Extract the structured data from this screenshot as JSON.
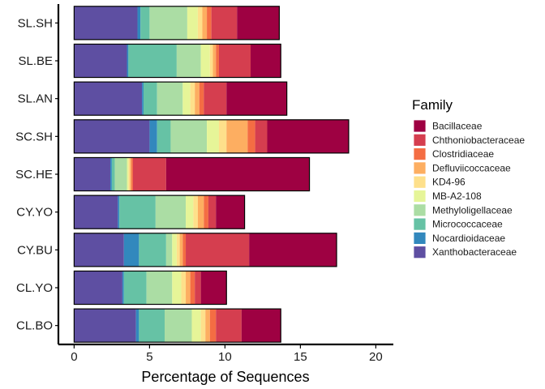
{
  "chart_data": {
    "type": "bar",
    "orientation": "horizontal",
    "stacked": true,
    "title": "",
    "xlabel": "Percentage of Sequences",
    "ylabel": "",
    "xlim": [
      0,
      21
    ],
    "x_ticks": [
      0,
      5,
      10,
      15,
      20
    ],
    "grid": false,
    "legend_position": "right",
    "legend_title": "Family",
    "categories": [
      "SL.SH",
      "SL.BE",
      "SL.AN",
      "SC.SH",
      "SC.HE",
      "CY.YO",
      "CY.BU",
      "CL.YO",
      "CL.BO"
    ],
    "legend_order": [
      "Bacillaceae",
      "Chthoniobacteraceae",
      "Clostridiaceae",
      "Defluviicoccaceae",
      "KD4-96",
      "MB-A2-108",
      "Methyloligellaceae",
      "Micrococcaceae",
      "Nocardioidaceae",
      "Xanthobacteraceae"
    ],
    "series": [
      {
        "name": "Xanthobacteraceae",
        "color": "#5E4FA2",
        "values": [
          4.2,
          3.5,
          4.5,
          5.0,
          2.4,
          2.9,
          3.3,
          3.2,
          4.1
        ]
      },
      {
        "name": "Nocardioidaceae",
        "color": "#3288BD",
        "values": [
          0.2,
          0.1,
          0.1,
          0.5,
          0.1,
          0.1,
          1.0,
          0.1,
          0.2
        ]
      },
      {
        "name": "Micrococcaceae",
        "color": "#66C2A5",
        "values": [
          0.6,
          3.2,
          0.9,
          0.9,
          0.2,
          2.4,
          1.8,
          1.5,
          1.7
        ]
      },
      {
        "name": "Methyloligellaceae",
        "color": "#ABDDA4",
        "values": [
          2.5,
          1.6,
          1.7,
          2.4,
          0.8,
          2.0,
          0.4,
          1.7,
          1.8
        ]
      },
      {
        "name": "MB-A2-108",
        "color": "#E6F598",
        "values": [
          0.7,
          0.6,
          0.5,
          0.8,
          0.1,
          0.5,
          0.3,
          0.6,
          0.6
        ]
      },
      {
        "name": "KD4-96",
        "color": "#FEE08B",
        "values": [
          0.3,
          0.2,
          0.3,
          0.5,
          0.1,
          0.3,
          0.2,
          0.3,
          0.3
        ]
      },
      {
        "name": "Defluviicoccaceae",
        "color": "#FDAE61",
        "values": [
          0.3,
          0.2,
          0.3,
          1.4,
          0.1,
          0.4,
          0.2,
          0.3,
          0.3
        ]
      },
      {
        "name": "Clostridiaceae",
        "color": "#F46D43",
        "values": [
          0.3,
          0.2,
          0.3,
          0.5,
          0.1,
          0.3,
          0.2,
          0.3,
          0.4
        ]
      },
      {
        "name": "Chthoniobacteraceae",
        "color": "#D53E4F",
        "values": [
          1.7,
          2.1,
          1.5,
          0.8,
          2.2,
          0.5,
          4.2,
          0.4,
          1.7
        ]
      },
      {
        "name": "Bacillaceae",
        "color": "#9E0142",
        "values": [
          2.8,
          2.0,
          4.0,
          5.4,
          9.5,
          1.9,
          5.8,
          1.7,
          2.6
        ]
      }
    ]
  }
}
